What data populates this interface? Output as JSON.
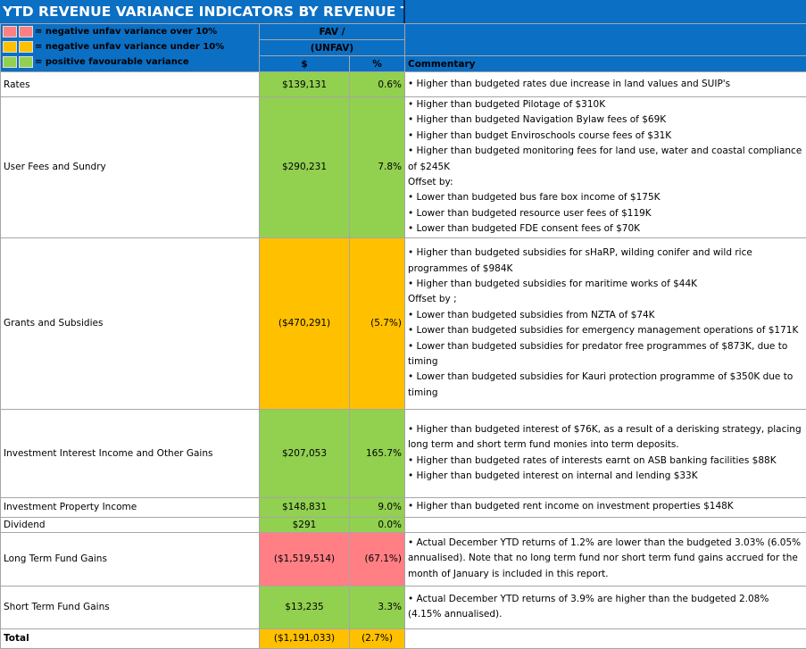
{
  "title": "YTD REVENUE VARIANCE INDICATORS BY REVENUE TYPE",
  "legend": [
    {
      "text": "= negative unfav variance over 10%",
      "color": "#ff7f84"
    },
    {
      "text": "= negative unfav variance under 10%",
      "color": "#ffc000"
    },
    {
      "text": "= positive favourable variance",
      "color": "#92d050"
    }
  ],
  "header": {
    "fav_label_1": "FAV /",
    "fav_label_2": "(UNFAV)",
    "dollar": "$",
    "percent": "%",
    "commentary": "Commentary"
  },
  "rows": [
    {
      "name": "Rates",
      "dollar": "$139,131",
      "pct": "0.6%",
      "status": "green",
      "comment": [
        "• Higher than budgeted rates due increase in land values and SUIP's"
      ]
    },
    {
      "name": "User Fees and Sundry",
      "dollar": "$290,231",
      "pct": "7.8%",
      "status": "green",
      "comment": [
        "• Higher than budgeted Pilotage of $310K",
        "• Higher than budgeted Navigation Bylaw fees of $69K",
        "• Higher than budget Enviroschools course fees of $31K",
        "• Higher than budgeted monitoring fees for land use, water and coastal compliance of $245K",
        "Offset by:",
        "• Lower than budgeted bus fare box income of $175K",
        "• Lower than budgeted resource user fees of $119K",
        "• Lower than budgeted FDE consent  fees of $70K"
      ]
    },
    {
      "name": "Grants and Subsidies",
      "dollar": "($470,291)",
      "pct": "(5.7%)",
      "status": "amber",
      "comment": [
        "• Higher than budgeted subsidies for sHaRP, wilding conifer and wild rice programmes of $984K",
        "• Higher than budgeted subsidies for maritime works of $44K",
        "Offset by ;",
        "• Lower  than budgeted subsidies from NZTA of $74K",
        "• Lower than budgeted  subsidies for emergency management operations of $171K",
        "• Lower than budgeted subsidies for predator free programmes of $873K, due to timing",
        "• Lower than budgeted subsidies for Kauri protection programme of $350K due to timing"
      ]
    },
    {
      "name": "Investment Interest Income and Other Gains",
      "dollar": "$207,053",
      "pct": "165.7%",
      "status": "green",
      "comment": [
        "• Higher than budgeted interest of $76K, as a result of a derisking strategy, placing long term and short term fund monies into term deposits.",
        "• Higher than budgeted rates of interests earnt on ASB banking facilities $88K",
        "• Higher than budgeted interest on internal and lending  $33K"
      ]
    },
    {
      "name": "Investment Property Income",
      "dollar": "$148,831",
      "pct": "9.0%",
      "status": "green",
      "comment": [
        "• Higher than budgeted rent income on investment properties $148K"
      ]
    },
    {
      "name": "Dividend",
      "dollar": "$291",
      "pct": "0.0%",
      "status": "green",
      "comment": []
    },
    {
      "name": "Long Term Fund Gains",
      "dollar": "($1,519,514)",
      "pct": "(67.1%)",
      "status": "red",
      "comment": [
        "• Actual December YTD returns of 1.2% are lower  than the budgeted 3.03% (6.05% annualised). Note that no long term fund nor short term fund gains accrued for the month of January is included in this report."
      ]
    },
    {
      "name": "Short Term Fund Gains",
      "dollar": "$13,235",
      "pct": "3.3%",
      "status": "green",
      "comment": [
        "• Actual December  YTD returns of 3.9% are higher than the budgeted 2.08% (4.15% annualised)."
      ]
    }
  ],
  "total": {
    "name": "Total",
    "dollar": "($1,191,033)",
    "pct": "(2.7%)",
    "status": "amber"
  }
}
